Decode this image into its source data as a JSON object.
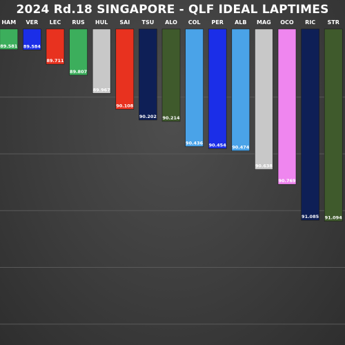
{
  "chart_data": {
    "type": "bar",
    "title": "2024 Rd.18 SINGAPORE - QLF IDEAL LAPTIMES",
    "xlabel": "",
    "ylabel": "",
    "ylim": [
      89.4,
      91.25
    ],
    "inverted_y": true,
    "grid": true,
    "categories": [
      "HAM",
      "VER",
      "LEC",
      "RUS",
      "HUL",
      "SAI",
      "TSU",
      "ALO",
      "COL",
      "PER",
      "ALB",
      "MAG",
      "OCO",
      "RIC",
      "STR"
    ],
    "values": [
      89.581,
      89.584,
      89.711,
      89.807,
      89.967,
      90.108,
      90.202,
      90.214,
      90.436,
      90.454,
      90.474,
      90.638,
      90.769,
      91.085,
      91.094
    ],
    "labels": [
      "89.581",
      "89.584",
      "89.711",
      "89.807",
      "89.967",
      "90.108",
      "90.202",
      "90.214",
      "90.436",
      "90.454",
      "90.474",
      "90.638",
      "90.769",
      "91.085",
      "91.094"
    ],
    "colors": [
      "#3cae5c",
      "#1b2ee8",
      "#e8321f",
      "#3cae5c",
      "#c8c8c8",
      "#e8321f",
      "#0e1f56",
      "#3f5a2c",
      "#4aa3e8",
      "#1b2ee8",
      "#4aa3e8",
      "#c8c8c8",
      "#ef86ef",
      "#0e1f56",
      "#3f5a2c"
    ],
    "label_colors": [
      "#ffffff",
      "#ffffff",
      "#ffffff",
      "#ffffff",
      "#ffffff",
      "#ffffff",
      "#ffffff",
      "#ffffff",
      "#ffffff",
      "#ffffff",
      "#ffffff",
      "#ffffff",
      "#ffffff",
      "#ffffff",
      "#ffffff"
    ]
  }
}
